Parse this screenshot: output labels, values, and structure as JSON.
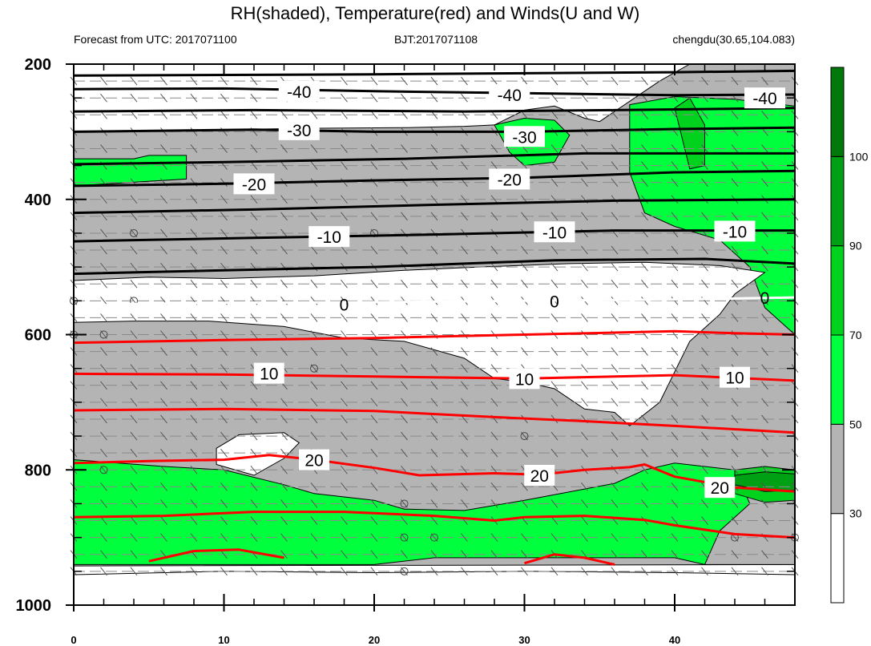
{
  "header": {
    "title": "RH(shaded), Temperature(red) and Winds(U and W)",
    "left": "Forecast from UTC: 2017071100",
    "center": "BJT:2017071108",
    "right": "chengdu(30.65,104.083)"
  },
  "colors": {
    "rh_30_50": "#b4b4b4",
    "rh_50_70": "#00ff3c",
    "rh_70_90": "#00d21e",
    "rh_90_100": "#00a014",
    "rh_100_plus": "#00780a",
    "warm_isotherm": "#ff0000",
    "cold_isotherm": "#000000",
    "zero_isotherm": "#ffffff"
  },
  "chart_data": {
    "type": "contour",
    "x_ticks": [
      0,
      10,
      20,
      30,
      40
    ],
    "x_range": [
      0,
      48
    ],
    "y_ticks": [
      200,
      400,
      600,
      800,
      1000
    ],
    "y_range": [
      1000,
      200
    ],
    "colorbar": {
      "ticks": [
        30,
        50,
        70,
        90,
        100
      ],
      "levels": [
        {
          "lo": 0,
          "hi": 30,
          "color": "#ffffff"
        },
        {
          "lo": 30,
          "hi": 50,
          "color": "#b4b4b4"
        },
        {
          "lo": 50,
          "hi": 70,
          "color": "#00ff3c"
        },
        {
          "lo": 70,
          "hi": 90,
          "color": "#00d21e"
        },
        {
          "lo": 90,
          "hi": 100,
          "color": "#00a014"
        },
        {
          "lo": 100,
          "hi": 110,
          "color": "#00780a"
        }
      ]
    },
    "regions": [
      {
        "level": "rh_30_50",
        "points": [
          [
            0,
            300
          ],
          [
            10,
            297
          ],
          [
            15,
            295
          ],
          [
            22,
            294
          ],
          [
            26,
            292
          ],
          [
            28,
            290
          ],
          [
            30,
            268
          ],
          [
            32,
            262
          ],
          [
            34,
            280
          ],
          [
            35,
            285
          ],
          [
            37,
            255
          ],
          [
            39,
            225
          ],
          [
            41,
            200
          ],
          [
            48,
            200
          ],
          [
            48,
            940
          ],
          [
            0,
            942
          ]
        ]
      },
      {
        "level": "rh_50_70",
        "points": [
          [
            0,
            340
          ],
          [
            4,
            340
          ],
          [
            5,
            335
          ],
          [
            7.5,
            335
          ],
          [
            7.5,
            370
          ],
          [
            0,
            380
          ]
        ]
      },
      {
        "level": "rh_50_70",
        "points": [
          [
            28,
            290
          ],
          [
            30,
            280
          ],
          [
            32,
            283
          ],
          [
            33,
            305
          ],
          [
            32,
            345
          ],
          [
            30,
            350
          ],
          [
            29,
            330
          ]
        ]
      },
      {
        "level": "rh_50_70",
        "points": [
          [
            37,
            260
          ],
          [
            40,
            248
          ],
          [
            44,
            252
          ],
          [
            48,
            262
          ],
          [
            48,
            940
          ],
          [
            42,
            940
          ],
          [
            43,
            890
          ],
          [
            45,
            850
          ],
          [
            44,
            800
          ],
          [
            40,
            790
          ],
          [
            38,
            800
          ],
          [
            36,
            820
          ],
          [
            30,
            845
          ],
          [
            26,
            860
          ],
          [
            22,
            858
          ],
          [
            20,
            845
          ],
          [
            16,
            835
          ],
          [
            14,
            822
          ],
          [
            10,
            800
          ],
          [
            6,
            795
          ],
          [
            0,
            785
          ],
          [
            0,
            940
          ],
          [
            20,
            940
          ],
          [
            24,
            930
          ],
          [
            30,
            930
          ],
          [
            40,
            930
          ],
          [
            42,
            940
          ],
          [
            48,
            940
          ],
          [
            48,
            600
          ],
          [
            46,
            560
          ],
          [
            45,
            500
          ],
          [
            43,
            460
          ],
          [
            40,
            440
          ],
          [
            38,
            420
          ],
          [
            37,
            360
          ]
        ]
      },
      {
        "level": "rh_70_90",
        "points": [
          [
            40,
            265
          ],
          [
            41,
            250
          ],
          [
            42,
            290
          ],
          [
            42,
            350
          ],
          [
            41,
            355
          ]
        ]
      },
      {
        "level": "rh_70_90",
        "points": [
          [
            44,
            800
          ],
          [
            46,
            795
          ],
          [
            48,
            800
          ],
          [
            48,
            845
          ],
          [
            46,
            848
          ],
          [
            44,
            835
          ]
        ]
      },
      {
        "level": "rh_90_100",
        "points": [
          [
            44,
            808
          ],
          [
            46,
            803
          ],
          [
            48,
            806
          ],
          [
            48,
            830
          ],
          [
            46,
            832
          ],
          [
            44,
            822
          ]
        ]
      },
      {
        "level": "white",
        "points": [
          [
            0,
            520
          ],
          [
            5,
            515
          ],
          [
            10,
            517
          ],
          [
            16,
            513
          ],
          [
            22,
            505
          ],
          [
            27,
            500
          ],
          [
            33,
            495
          ],
          [
            38,
            493
          ],
          [
            43,
            498
          ],
          [
            46,
            508
          ],
          [
            44,
            540
          ],
          [
            43,
            570
          ],
          [
            41,
            610
          ],
          [
            39,
            700
          ],
          [
            37,
            735
          ],
          [
            36,
            715
          ],
          [
            34,
            710
          ],
          [
            32,
            680
          ],
          [
            30,
            670
          ],
          [
            28,
            665
          ],
          [
            26,
            635
          ],
          [
            22,
            610
          ],
          [
            18,
            605
          ],
          [
            14,
            588
          ],
          [
            9,
            580
          ],
          [
            4,
            580
          ],
          [
            0,
            582
          ]
        ]
      },
      {
        "level": "white",
        "points": [
          [
            9.5,
            768
          ],
          [
            11,
            748
          ],
          [
            14,
            745
          ],
          [
            15,
            760
          ],
          [
            14,
            783
          ],
          [
            12,
            808
          ],
          [
            9.5,
            792
          ]
        ]
      },
      {
        "level": "white",
        "points": [
          [
            0,
            1000
          ],
          [
            0,
            955
          ],
          [
            10,
            950
          ],
          [
            20,
            952
          ],
          [
            30,
            950
          ],
          [
            40,
            952
          ],
          [
            48,
            955
          ],
          [
            48,
            1000
          ]
        ]
      }
    ],
    "cold_isotherms": [
      {
        "points": [
          [
            0,
            217
          ],
          [
            20,
            215
          ],
          [
            40,
            212
          ],
          [
            48,
            210
          ]
        ]
      },
      {
        "label": "-40",
        "label_pos": [
          [
            15,
            240
          ],
          [
            29,
            245
          ],
          [
            46,
            250
          ]
        ],
        "points": [
          [
            0,
            237
          ],
          [
            10,
            236
          ],
          [
            20,
            240
          ],
          [
            30,
            243
          ],
          [
            40,
            246
          ],
          [
            48,
            245
          ]
        ]
      },
      {
        "points": [
          [
            0,
            270
          ],
          [
            12,
            268
          ],
          [
            26,
            270
          ],
          [
            36,
            268
          ],
          [
            48,
            265
          ]
        ]
      },
      {
        "label": "-30",
        "label_pos": [
          [
            15,
            297
          ],
          [
            30,
            307
          ]
        ],
        "points": [
          [
            0,
            300
          ],
          [
            12,
            297
          ],
          [
            20,
            300
          ],
          [
            30,
            300
          ],
          [
            40,
            296
          ],
          [
            48,
            294
          ]
        ]
      },
      {
        "points": [
          [
            0,
            348
          ],
          [
            10,
            345
          ],
          [
            22,
            340
          ],
          [
            34,
            332
          ],
          [
            44,
            332
          ],
          [
            48,
            332
          ]
        ]
      },
      {
        "label": "-20",
        "label_pos": [
          [
            12,
            377
          ],
          [
            29,
            370
          ]
        ],
        "points": [
          [
            0,
            380
          ],
          [
            10,
            377
          ],
          [
            20,
            372
          ],
          [
            30,
            368
          ],
          [
            40,
            360
          ],
          [
            48,
            358
          ]
        ]
      },
      {
        "points": [
          [
            0,
            420
          ],
          [
            12,
            415
          ],
          [
            24,
            408
          ],
          [
            36,
            402
          ],
          [
            48,
            400
          ]
        ]
      },
      {
        "label": "-10",
        "label_pos": [
          [
            17,
            455
          ],
          [
            32,
            448
          ],
          [
            44,
            447
          ]
        ],
        "points": [
          [
            0,
            462
          ],
          [
            12,
            457
          ],
          [
            24,
            452
          ],
          [
            36,
            446
          ],
          [
            48,
            446
          ]
        ]
      },
      {
        "points": [
          [
            0,
            510
          ],
          [
            10,
            505
          ],
          [
            20,
            500
          ],
          [
            32,
            490
          ],
          [
            42,
            488
          ],
          [
            48,
            495
          ]
        ]
      }
    ],
    "zero_isotherm": {
      "label": "0",
      "label_pos": [
        [
          18,
          555
        ],
        [
          32,
          550
        ],
        [
          46,
          545
        ]
      ],
      "points": [
        [
          0,
          560
        ],
        [
          3,
          555
        ],
        [
          10,
          553
        ],
        [
          20,
          552
        ],
        [
          30,
          550
        ],
        [
          40,
          548
        ],
        [
          48,
          545
        ]
      ]
    },
    "warm_isotherms": [
      {
        "points": [
          [
            0,
            612
          ],
          [
            10,
            608
          ],
          [
            20,
            605
          ],
          [
            30,
            600
          ],
          [
            36,
            597
          ],
          [
            40,
            595
          ],
          [
            44,
            598
          ],
          [
            48,
            600
          ]
        ]
      },
      {
        "label": "10",
        "label_pos": [
          [
            13,
            657
          ],
          [
            30,
            665
          ],
          [
            44,
            663
          ]
        ],
        "points": [
          [
            0,
            658
          ],
          [
            10,
            659
          ],
          [
            20,
            662
          ],
          [
            30,
            665
          ],
          [
            40,
            660
          ],
          [
            48,
            668
          ]
        ]
      },
      {
        "points": [
          [
            0,
            712
          ],
          [
            10,
            710
          ],
          [
            20,
            713
          ],
          [
            28,
            722
          ],
          [
            34,
            728
          ],
          [
            40,
            735
          ],
          [
            48,
            745
          ]
        ]
      },
      {
        "label": "20",
        "label_pos": [
          [
            16,
            785
          ],
          [
            31,
            808
          ],
          [
            43,
            826
          ]
        ],
        "points": [
          [
            0,
            790
          ],
          [
            5,
            787
          ],
          [
            10,
            785
          ],
          [
            13,
            778
          ],
          [
            16,
            785
          ],
          [
            20,
            797
          ],
          [
            23,
            808
          ],
          [
            28,
            805
          ],
          [
            31,
            807
          ],
          [
            34,
            800
          ],
          [
            37,
            796
          ],
          [
            38,
            792
          ],
          [
            40,
            810
          ],
          [
            44,
            826
          ],
          [
            48,
            832
          ]
        ]
      },
      {
        "points": [
          [
            0,
            870
          ],
          [
            6,
            868
          ],
          [
            12,
            862
          ],
          [
            18,
            862
          ],
          [
            24,
            868
          ],
          [
            28,
            875
          ],
          [
            30,
            870
          ],
          [
            34,
            868
          ],
          [
            38,
            874
          ],
          [
            40,
            882
          ],
          [
            44,
            895
          ],
          [
            48,
            900
          ]
        ]
      },
      {
        "points": [
          [
            5,
            935
          ],
          [
            8,
            920
          ],
          [
            11,
            918
          ],
          [
            14,
            930
          ]
        ]
      },
      {
        "points": [
          [
            30,
            938
          ],
          [
            32,
            925
          ],
          [
            34,
            930
          ],
          [
            36,
            940
          ]
        ]
      }
    ]
  }
}
